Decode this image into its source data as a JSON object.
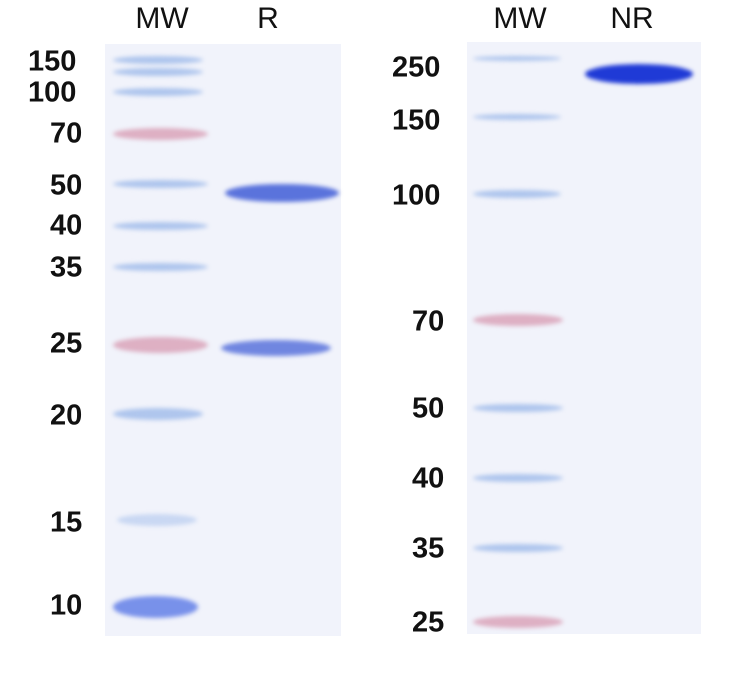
{
  "left_gel": {
    "lanes": [
      "MW",
      "R"
    ],
    "markers_kda": [
      "150",
      "100",
      "70",
      "50",
      "40",
      "35",
      "25",
      "20",
      "15",
      "10"
    ]
  },
  "right_gel": {
    "lanes": [
      "MW",
      "NR"
    ],
    "markers_kda": [
      "250",
      "150",
      "100",
      "70",
      "50",
      "40",
      "35",
      "25"
    ]
  },
  "colors": {
    "gel_background": "#f1f3fb",
    "protein_band": "#4a62d8",
    "marker_pink": "#d98aa4",
    "marker_blue": "#8fb2e4"
  }
}
